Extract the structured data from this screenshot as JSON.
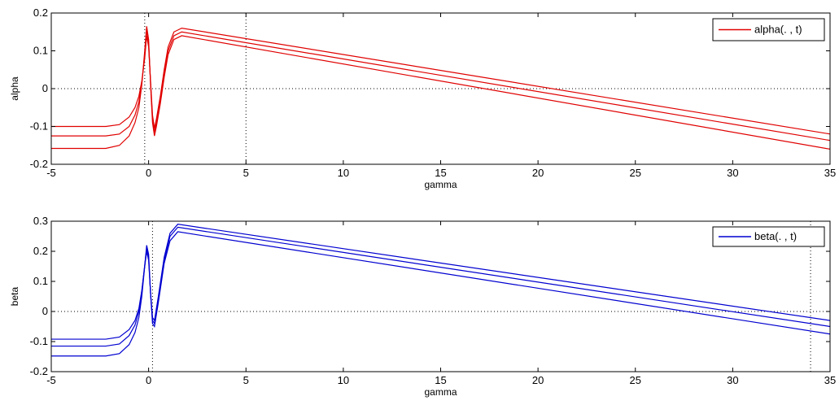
{
  "chart_data": [
    {
      "type": "line",
      "xlabel": "gamma",
      "ylabel": "alpha",
      "xlim": [
        -5,
        35
      ],
      "ylim": [
        -0.2,
        0.2
      ],
      "xticks": [
        -5,
        0,
        5,
        10,
        15,
        20,
        25,
        30,
        35
      ],
      "xtick_labels": [
        "-5",
        "0",
        "5",
        "10",
        "15",
        "20",
        "25",
        "30",
        "35"
      ],
      "yticks": [
        -0.2,
        -0.1,
        0,
        0.1,
        0.2
      ],
      "ytick_labels": [
        "-0.2",
        "-0.1",
        "0",
        "0.1",
        "0.2"
      ],
      "color": "#e00000",
      "legend": {
        "label": "alpha(. , t)",
        "placement": "top-right"
      },
      "reference_lines": {
        "horizontal": [
          0
        ],
        "vertical": [
          -0.2,
          5
        ]
      },
      "series": [
        {
          "x": [
            -5,
            -2.2,
            -1.5,
            -1,
            -0.7,
            -0.5,
            -0.35,
            -0.2,
            -0.1,
            0,
            0.1,
            0.2,
            0.3,
            0.4,
            0.6,
            0.8,
            1,
            1.3,
            1.7,
            35
          ],
          "y": [
            -0.1,
            -0.1,
            -0.095,
            -0.075,
            -0.05,
            -0.02,
            0.02,
            0.08,
            0.14,
            0.11,
            0.02,
            -0.07,
            -0.105,
            -0.08,
            -0.02,
            0.05,
            0.11,
            0.15,
            0.16,
            -0.12
          ]
        },
        {
          "x": [
            -5,
            -2.2,
            -1.5,
            -1,
            -0.7,
            -0.5,
            -0.35,
            -0.2,
            -0.1,
            0,
            0.1,
            0.2,
            0.3,
            0.4,
            0.6,
            0.8,
            1,
            1.3,
            1.7,
            35
          ],
          "y": [
            -0.125,
            -0.125,
            -0.12,
            -0.1,
            -0.07,
            -0.035,
            0.015,
            0.09,
            0.155,
            0.12,
            0.015,
            -0.08,
            -0.115,
            -0.09,
            -0.03,
            0.04,
            0.1,
            0.14,
            0.15,
            -0.137
          ]
        },
        {
          "x": [
            -5,
            -2.2,
            -1.5,
            -1,
            -0.7,
            -0.5,
            -0.35,
            -0.2,
            -0.1,
            0,
            0.1,
            0.2,
            0.3,
            0.4,
            0.6,
            0.8,
            1,
            1.3,
            1.7,
            35
          ],
          "y": [
            -0.158,
            -0.158,
            -0.15,
            -0.125,
            -0.09,
            -0.05,
            0.01,
            0.1,
            0.165,
            0.13,
            0.01,
            -0.09,
            -0.125,
            -0.1,
            -0.04,
            0.03,
            0.09,
            0.13,
            0.14,
            -0.16
          ]
        }
      ]
    },
    {
      "type": "line",
      "xlabel": "gamma",
      "ylabel": "beta",
      "xlim": [
        -5,
        35
      ],
      "ylim": [
        -0.2,
        0.3
      ],
      "xticks": [
        -5,
        0,
        5,
        10,
        15,
        20,
        25,
        30,
        35
      ],
      "xtick_labels": [
        "-5",
        "0",
        "5",
        "10",
        "15",
        "20",
        "25",
        "30",
        "35"
      ],
      "yticks": [
        -0.2,
        -0.1,
        0,
        0.1,
        0.2,
        0.3
      ],
      "ytick_labels": [
        "-0.2",
        "-0.1",
        "0",
        "0.1",
        "0.2",
        "0.3"
      ],
      "color": "#0000d0",
      "legend": {
        "label": "beta(. , t)",
        "placement": "top-right"
      },
      "reference_lines": {
        "horizontal": [
          0
        ],
        "vertical": [
          0.2,
          34
        ]
      },
      "series": [
        {
          "x": [
            -5,
            -2.2,
            -1.5,
            -1,
            -0.7,
            -0.5,
            -0.35,
            -0.2,
            -0.1,
            0,
            0.1,
            0.2,
            0.3,
            0.5,
            0.8,
            1.1,
            1.5,
            35
          ],
          "y": [
            -0.092,
            -0.092,
            -0.085,
            -0.06,
            -0.03,
            0.01,
            0.07,
            0.15,
            0.2,
            0.17,
            0.06,
            -0.02,
            -0.03,
            0.05,
            0.18,
            0.26,
            0.29,
            -0.03
          ]
        },
        {
          "x": [
            -5,
            -2.2,
            -1.5,
            -1,
            -0.7,
            -0.5,
            -0.35,
            -0.2,
            -0.1,
            0,
            0.1,
            0.2,
            0.3,
            0.5,
            0.8,
            1.1,
            1.5,
            35
          ],
          "y": [
            -0.115,
            -0.115,
            -0.108,
            -0.08,
            -0.045,
            0,
            0.065,
            0.155,
            0.21,
            0.18,
            0.06,
            -0.03,
            -0.04,
            0.04,
            0.17,
            0.25,
            0.28,
            -0.05
          ]
        },
        {
          "x": [
            -5,
            -2.2,
            -1.5,
            -1,
            -0.7,
            -0.5,
            -0.35,
            -0.2,
            -0.1,
            0,
            0.1,
            0.2,
            0.3,
            0.5,
            0.8,
            1.1,
            1.5,
            35
          ],
          "y": [
            -0.148,
            -0.148,
            -0.14,
            -0.11,
            -0.07,
            -0.02,
            0.05,
            0.15,
            0.22,
            0.19,
            0.06,
            -0.04,
            -0.05,
            0.03,
            0.16,
            0.235,
            0.265,
            -0.075
          ]
        }
      ]
    }
  ]
}
